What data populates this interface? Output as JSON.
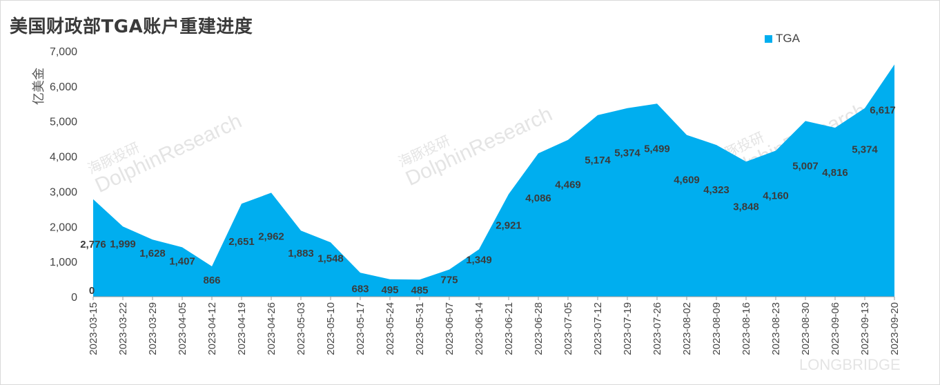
{
  "title": "美国财政部TGA账户重建进度",
  "chart_data": {
    "type": "area",
    "title": "美国财政部TGA账户重建进度",
    "ylabel": "亿美金",
    "xlabel": "",
    "ylim": [
      0,
      7000
    ],
    "yticks": [
      "0",
      "1,000",
      "2,000",
      "3,000",
      "4,000",
      "5,000",
      "6,000",
      "7,000"
    ],
    "grid": false,
    "legend_position": "top-right",
    "categories": [
      "2023-03-15",
      "2023-03-22",
      "2023-03-29",
      "2023-04-05",
      "2023-04-12",
      "2023-04-19",
      "2023-04-26",
      "2023-05-03",
      "2023-05-10",
      "2023-05-17",
      "2023-05-24",
      "2023-05-31",
      "2023-06-07",
      "2023-06-14",
      "2023-06-21",
      "2023-06-28",
      "2023-07-05",
      "2023-07-12",
      "2023-07-19",
      "2023-07-26",
      "2023-08-02",
      "2023-08-09",
      "2023-08-16",
      "2023-08-23",
      "2023-08-30",
      "2023-09-06",
      "2023-09-13",
      "2023-09-20"
    ],
    "series": [
      {
        "name": "TGA",
        "color": "#00aeef",
        "values": [
          2776,
          1999,
          1628,
          1407,
          866,
          2651,
          2962,
          1883,
          1548,
          683,
          495,
          485,
          775,
          1349,
          2921,
          4086,
          4469,
          5174,
          5374,
          5499,
          4609,
          4323,
          3848,
          4160,
          5007,
          4816,
          5374,
          6617
        ],
        "labels": [
          "2,776",
          "1,999",
          "1,628",
          "1,407",
          "866",
          "2,651",
          "2,962",
          "1,883",
          "1,548",
          "683",
          "495",
          "485",
          "775",
          "1,349",
          "2,921",
          "4,086",
          "4,469",
          "5,174",
          "5,374",
          "5,499",
          "4,609",
          "4,323",
          "3,848",
          "4,160",
          "5,007",
          "4,816",
          "5,374",
          "6,617"
        ]
      }
    ],
    "extra_labels": [
      {
        "text": "0"
      }
    ]
  },
  "watermarks": {
    "brand_cn": "海豚投研",
    "brand_en": "DolphinResearch",
    "footer": "LONGBRIDGE"
  }
}
